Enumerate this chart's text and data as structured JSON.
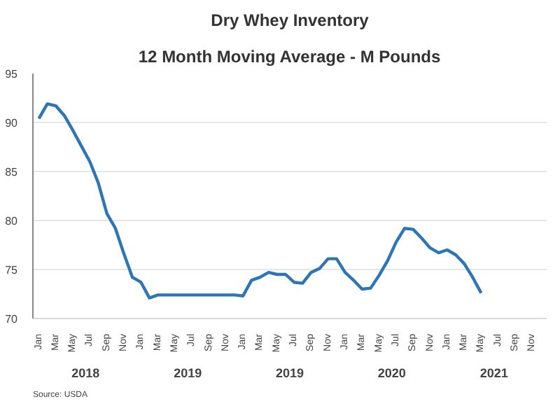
{
  "chart_data": {
    "type": "line",
    "title": "Dry Whey Inventory",
    "subtitle": "12 Month Moving Average - M Pounds",
    "categories": [
      "Jan",
      null,
      "Mar",
      null,
      "May",
      null,
      "Jul",
      null,
      "Sep",
      null,
      "Nov",
      null,
      "Jan",
      null,
      "Mar",
      null,
      "May",
      null,
      "Jul",
      null,
      "Sep",
      null,
      "Nov",
      null,
      "Jan",
      null,
      "Mar",
      null,
      "May",
      null,
      "Jul",
      null,
      "Sep",
      null,
      "Nov",
      null,
      "Jan",
      null,
      "Mar",
      null,
      "May",
      null,
      "Jul",
      null,
      "Sep",
      null,
      "Nov",
      null,
      "Jan",
      null,
      "Mar",
      null,
      "May",
      null,
      "Jul",
      null,
      "Sep",
      null,
      "Nov",
      null
    ],
    "series": [
      {
        "color": "#2e75b6",
        "values": [
          90.4,
          91.9,
          91.7,
          90.7,
          89.2,
          87.6,
          86.0,
          83.8,
          80.7,
          79.2,
          76.6,
          74.2,
          73.7,
          72.1,
          72.4,
          72.4,
          72.4,
          72.4,
          72.4,
          72.4,
          72.4,
          72.4,
          72.4,
          72.4,
          72.3,
          73.9,
          74.2,
          74.7,
          74.5,
          74.5,
          73.7,
          73.6,
          74.7,
          75.1,
          76.1,
          76.1,
          74.7,
          73.9,
          73.0,
          73.1,
          74.4,
          75.9,
          77.8,
          79.2,
          79.1,
          78.2,
          77.2,
          76.7,
          77.0,
          76.5,
          75.6,
          74.2,
          72.6,
          null,
          null,
          null,
          null,
          null,
          null,
          null
        ]
      }
    ],
    "ylim": [
      70,
      95
    ],
    "yticks": [
      70,
      75,
      80,
      85,
      90,
      95
    ],
    "grid": "y",
    "marker": "none",
    "line_style": "solid",
    "annotations": [
      "2018",
      "2019",
      "2019",
      "2020",
      "2021",
      "Source: USDA"
    ]
  }
}
